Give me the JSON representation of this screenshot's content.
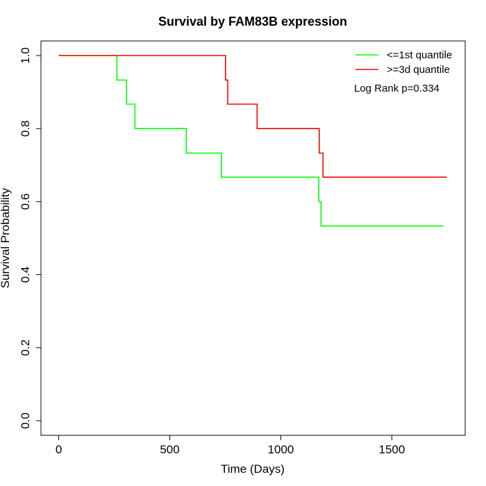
{
  "chart_data": {
    "type": "line",
    "title": "Survival by FAM83B expression",
    "xlabel": "Time (Days)",
    "ylabel": "Survival Probability",
    "xlim": [
      -80,
      1830
    ],
    "ylim": [
      -0.04,
      1.04
    ],
    "x_ticks": [
      0,
      500,
      1000,
      1500
    ],
    "x_tick_labels": [
      "0",
      "500",
      "1000",
      "1500"
    ],
    "y_ticks": [
      0,
      0.2,
      0.4,
      0.6,
      0.8,
      1.0
    ],
    "y_tick_labels": [
      "0.0",
      "0.2",
      "0.4",
      "0.6",
      "0.8",
      "1.0"
    ],
    "grid": false,
    "legend_position": "top-right",
    "annotation": "Log Rank p=0.334",
    "series": [
      {
        "name": "<=1st quantile",
        "color": "#00ff00",
        "step": "post",
        "x": [
          0,
          262,
          305,
          343,
          574,
          732,
          1171,
          1181,
          1732
        ],
        "y": [
          1.0,
          0.933,
          0.867,
          0.8,
          0.733,
          0.667,
          0.6,
          0.533,
          0.533
        ]
      },
      {
        "name": ">=3d quantile",
        "color": "#ff0000",
        "step": "post",
        "x": [
          0,
          751,
          761,
          893,
          1173,
          1190,
          1747
        ],
        "y": [
          1.0,
          0.933,
          0.867,
          0.8,
          0.733,
          0.667,
          0.667
        ]
      }
    ]
  }
}
